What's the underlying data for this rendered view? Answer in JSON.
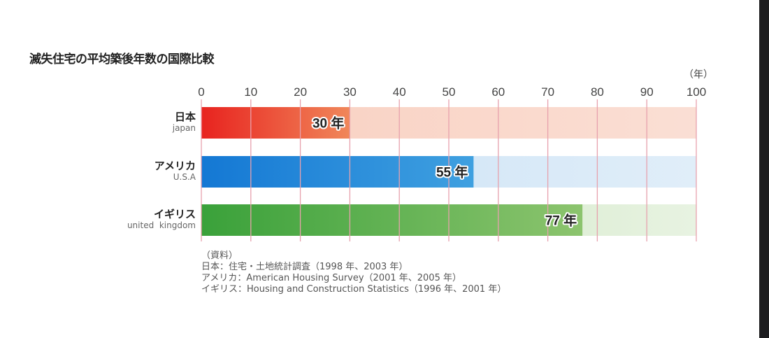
{
  "chart_data": {
    "type": "bar",
    "orientation": "horizontal",
    "title": "滅失住宅の平均築後年数の国際比較",
    "unit_label": "（年）",
    "xlim": [
      0,
      100
    ],
    "xticks": [
      0,
      10,
      20,
      30,
      40,
      50,
      60,
      70,
      80,
      90,
      100
    ],
    "grid": true,
    "categories": [
      {
        "label_jp": "日本",
        "label_en": "japan",
        "value": 30,
        "value_label": "30 年",
        "color_start": "#e8231f",
        "color_end": "#f0875a",
        "track_color": "#f9d4c6"
      },
      {
        "label_jp": "アメリカ",
        "label_en": "U.S.A",
        "value": 55,
        "value_label": "55 年",
        "color_start": "#1478d4",
        "color_end": "#3fa0e0",
        "track_color": "#d6e8f7"
      },
      {
        "label_jp": "イギリス",
        "label_en": "united  kingdom",
        "value": 77,
        "value_label": "77 年",
        "color_start": "#3aa13a",
        "color_end": "#8cc46e",
        "track_color": "#e0efd8"
      }
    ],
    "grid_color": "#e7a1ad"
  },
  "source": {
    "heading": "（資料）",
    "lines": [
      "日本：住宅・土地統計調査（1998 年、2003 年）",
      "アメリカ：American Housing Survey（2001 年、2005 年）",
      "イギリス：Housing and Construction Statistics（1996 年、2001 年）"
    ]
  }
}
